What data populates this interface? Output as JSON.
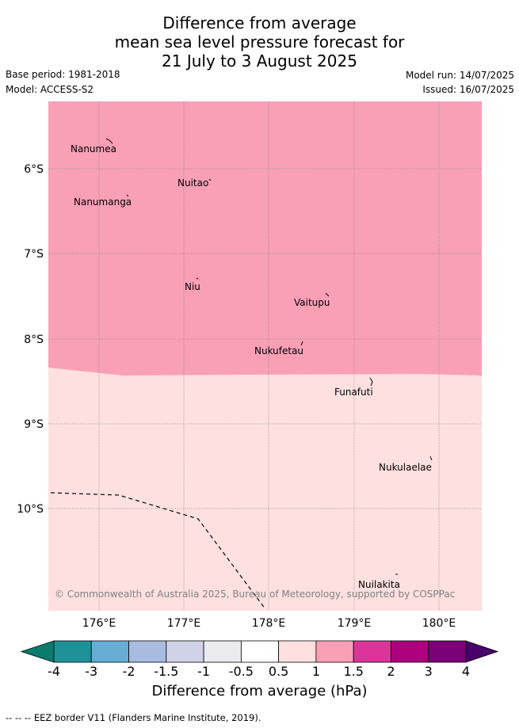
{
  "title": {
    "line1": "Difference from average",
    "line2": "mean sea level pressure forecast for",
    "line3": "21 July to 3 August 2025"
  },
  "meta": {
    "base_period": "Base period: 1981-2018",
    "model": "Model: ACCESS-S2",
    "model_run": "Model run: 14/07/2025",
    "issued": "Issued: 16/07/2025"
  },
  "map": {
    "lat_labels": [
      "6°S",
      "7°S",
      "8°S",
      "9°S",
      "10°S"
    ],
    "lon_labels": [
      "176°E",
      "177°E",
      "178°E",
      "179°E",
      "180°E"
    ],
    "places": [
      "Nanumea",
      "Nuitao",
      "Nanumanga",
      "Niu",
      "Vaitupu",
      "Nukufetau",
      "Funafuti",
      "Nukulaelae",
      "Nuilakita"
    ],
    "copyright": "© Commonwealth of Australia 2025, Bureau of Meteorology, supported by COSPPac",
    "fill_colors": {
      "one_to_1_5": "#f99fb6",
      "half_to_one": "#fde0df"
    }
  },
  "colorbar": {
    "labels": [
      "-4",
      "-3",
      "-2",
      "-1.5",
      "-1",
      "-0.5",
      "0.5",
      "1",
      "1.5",
      "2",
      "3",
      "4"
    ],
    "colors": [
      "#0b7b6c",
      "#1f9199",
      "#68aed4",
      "#a8bce0",
      "#d0d3e8",
      "#ebeaee",
      "#ffffff",
      "#fde0df",
      "#f99fb6",
      "#dd3499",
      "#ae017e",
      "#7a0177",
      "#4a006a"
    ],
    "title": "Difference from average (hPa)"
  },
  "footer": {
    "legend": "--  --  -- EEZ border V11 (Flanders Marine Institute, 2019)."
  }
}
